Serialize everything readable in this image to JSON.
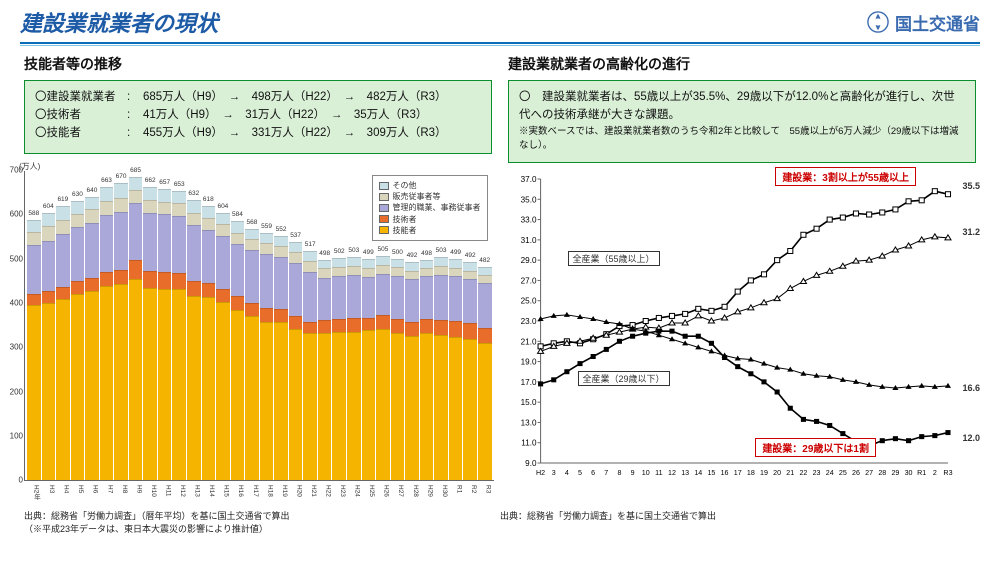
{
  "header": {
    "title": "建設業就業者の現状",
    "logo_text": "国土交通省"
  },
  "left": {
    "subtitle": "技能者等の推移",
    "rows": [
      {
        "label": "〇建設業就業者",
        "v1": "685万人（H9）",
        "v2": "498万人（H22）",
        "v3": "482万人（R3）"
      },
      {
        "label": "〇技術者",
        "v1": "41万人（H9）",
        "v2": "31万人（H22）",
        "v3": "35万人（R3）"
      },
      {
        "label": "〇技能者",
        "v1": "455万人（H9）",
        "v2": "331万人（H22）",
        "v3": "309万人（R3）"
      }
    ],
    "source": "出典：総務省「労働力調査」（暦年平均）を基に国土交通省で算出",
    "source_note": "（※平成23年データは、東日本大震災の影響により推計値）"
  },
  "right": {
    "subtitle": "建設業就業者の高齢化の進行",
    "box_text": "〇　建設業就業者は、55歳以上が35.5%、29歳以下が12.0%と高齢化が進行し、次世代への技術承継が大きな課題。",
    "box_note": "※実数ベースでは、建設業就業者数のうち令和2年と比較して　55歳以上が6万人減少（29歳以下は増減なし）。",
    "source": "出典：総務省「労働力調査」を基に国土交通省で算出"
  },
  "bar_chart": {
    "unit": "(万人)",
    "ymax": 700,
    "ytick_step": 100,
    "colors": {
      "ginou": "#f4b400",
      "gijutsu": "#e86c2a",
      "kanri": "#a9a8d9",
      "hanbai": "#d9d6bd",
      "sonota": "#c9e0e6"
    },
    "legend": [
      "その他",
      "販売従事者等",
      "管理的職業、事務従事者",
      "技術者",
      "技能者"
    ],
    "years": [
      "H2年",
      "H3",
      "H4",
      "H5",
      "H6",
      "H7",
      "H8",
      "H9",
      "H10",
      "H11",
      "H12",
      "H13",
      "H14",
      "H15",
      "H16",
      "H17",
      "H18",
      "H19",
      "H20",
      "H21",
      "H22",
      "H23",
      "H24",
      "H25",
      "H26",
      "H27",
      "H28",
      "H29",
      "H30",
      "R1",
      "R2",
      "R3"
    ],
    "totals": [
      588,
      604,
      619,
      630,
      640,
      663,
      670,
      685,
      662,
      657,
      653,
      632,
      618,
      604,
      584,
      568,
      559,
      552,
      537,
      517,
      498,
      502,
      503,
      499,
      505,
      500,
      492,
      498,
      503,
      499,
      492,
      482
    ],
    "stacks": [
      [
        395,
        25,
        110,
        30,
        28
      ],
      [
        399,
        27,
        115,
        32,
        31
      ],
      [
        408,
        28,
        120,
        32,
        31
      ],
      [
        420,
        29,
        122,
        31,
        28
      ],
      [
        426,
        30,
        125,
        31,
        28
      ],
      [
        438,
        32,
        128,
        33,
        32
      ],
      [
        442,
        33,
        130,
        32,
        33
      ],
      [
        455,
        41,
        130,
        30,
        29
      ],
      [
        434,
        39,
        130,
        30,
        29
      ],
      [
        432,
        38,
        130,
        29,
        28
      ],
      [
        432,
        36,
        128,
        29,
        28
      ],
      [
        415,
        35,
        125,
        29,
        28
      ],
      [
        414,
        32,
        118,
        27,
        27
      ],
      [
        401,
        30,
        120,
        27,
        26
      ],
      [
        385,
        30,
        117,
        27,
        25
      ],
      [
        370,
        29,
        120,
        25,
        24
      ],
      [
        358,
        30,
        122,
        25,
        24
      ],
      [
        358,
        28,
        117,
        25,
        24
      ],
      [
        342,
        28,
        120,
        24,
        23
      ],
      [
        331,
        27,
        113,
        24,
        22
      ],
      [
        331,
        31,
        95,
        21,
        20
      ],
      [
        334,
        30,
        97,
        21,
        20
      ],
      [
        335,
        30,
        97,
        21,
        20
      ],
      [
        338,
        29,
        92,
        20,
        20
      ],
      [
        341,
        32,
        92,
        20,
        20
      ],
      [
        331,
        33,
        97,
        20,
        19
      ],
      [
        326,
        31,
        97,
        19,
        19
      ],
      [
        331,
        33,
        96,
        19,
        19
      ],
      [
        328,
        33,
        103,
        20,
        19
      ],
      [
        324,
        36,
        100,
        20,
        19
      ],
      [
        318,
        37,
        99,
        19,
        19
      ],
      [
        309,
        35,
        100,
        19,
        19
      ]
    ]
  },
  "line_chart": {
    "ymin": 9,
    "ymax": 37,
    "ytick_step": 2,
    "years": [
      "H2",
      "3",
      "4",
      "5",
      "6",
      "7",
      "8",
      "9",
      "10",
      "11",
      "12",
      "13",
      "14",
      "15",
      "16",
      "17",
      "18",
      "19",
      "20",
      "21",
      "22",
      "23",
      "24",
      "25",
      "26",
      "27",
      "28",
      "29",
      "30",
      "R1",
      "2",
      "R3"
    ],
    "c55": [
      20.5,
      20.8,
      21.0,
      20.8,
      21.2,
      21.7,
      22.5,
      22.6,
      23.0,
      23.3,
      23.5,
      23.7,
      24.2,
      24.0,
      24.4,
      25.9,
      27.0,
      27.6,
      29.0,
      29.9,
      31.5,
      32.1,
      33.0,
      33.2,
      33.6,
      33.5,
      33.7,
      34.0,
      34.8,
      34.9,
      35.8,
      35.5
    ],
    "a55": [
      20.0,
      20.5,
      20.8,
      21.0,
      21.3,
      21.6,
      21.9,
      22.2,
      22.4,
      22.3,
      22.8,
      22.8,
      23.5,
      23.0,
      23.3,
      23.9,
      24.3,
      24.8,
      25.2,
      26.2,
      26.9,
      27.5,
      27.9,
      28.4,
      28.9,
      29.0,
      29.4,
      30.0,
      30.4,
      31.0,
      31.3,
      31.2
    ],
    "c29": [
      16.8,
      17.2,
      18.0,
      18.8,
      19.5,
      20.2,
      21.0,
      21.5,
      21.8,
      22.0,
      22.0,
      21.5,
      21.5,
      20.8,
      19.4,
      18.5,
      17.8,
      17.0,
      16.0,
      14.4,
      13.3,
      13.1,
      12.7,
      11.9,
      11.1,
      10.7,
      11.2,
      11.4,
      11.2,
      11.6,
      11.7,
      12.0
    ],
    "a29": [
      23.2,
      23.5,
      23.6,
      23.4,
      23.2,
      22.9,
      22.7,
      22.2,
      22.0,
      21.6,
      21.2,
      20.8,
      20.4,
      20.0,
      19.6,
      19.3,
      19.2,
      18.8,
      18.4,
      18.2,
      17.8,
      17.6,
      17.5,
      17.2,
      17.0,
      16.7,
      16.5,
      16.4,
      16.5,
      16.6,
      16.5,
      16.6
    ],
    "end_labels": {
      "c55": "35.5",
      "a55": "31.2",
      "a29": "16.6",
      "c29": "12.0"
    },
    "callout_top": "建設業：3割以上が55歳以上",
    "callout_bot": "建設業：29歳以下は1割",
    "lbl_a55": "全産業（55歳以上）",
    "lbl_a29": "全産業（29歳以下）"
  }
}
